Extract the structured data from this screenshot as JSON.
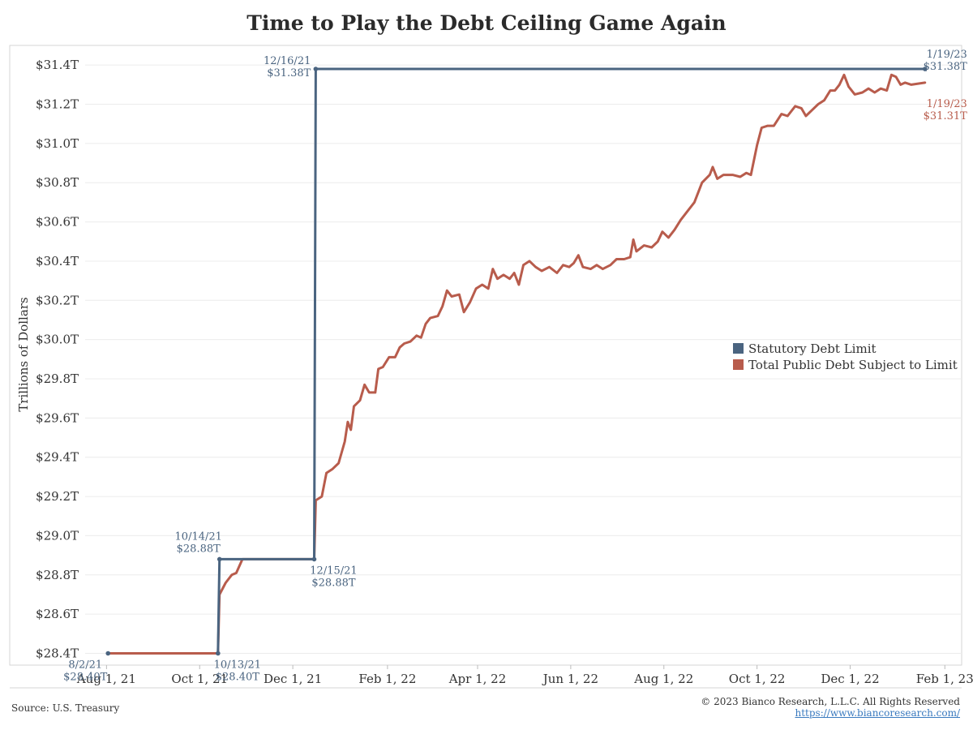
{
  "title": "Time to Play the Debt Ceiling Game Again",
  "source": "Source: U.S. Treasury",
  "copyright": "© 2023 Bianco Research, L.L.C. All Rights Reserved",
  "url": "https://www.biancoresearch.com/",
  "colors": {
    "limit": "#4a6480",
    "debt": "#b85c4c"
  },
  "chart_data": {
    "type": "line",
    "title": "Time to Play the Debt Ceiling Game Again",
    "ylabel": "Trillions of Dollars",
    "xlabel": "",
    "ylim": [
      28.34,
      31.5
    ],
    "xlim": [
      "2021-07-18",
      "2023-02-12"
    ],
    "yticks": [
      {
        "v": 28.4,
        "label": "$28.4T"
      },
      {
        "v": 28.6,
        "label": "$28.6T"
      },
      {
        "v": 28.8,
        "label": "$28.8T"
      },
      {
        "v": 29.0,
        "label": "$29.0T"
      },
      {
        "v": 29.2,
        "label": "$29.2T"
      },
      {
        "v": 29.4,
        "label": "$29.4T"
      },
      {
        "v": 29.6,
        "label": "$29.6T"
      },
      {
        "v": 29.8,
        "label": "$29.8T"
      },
      {
        "v": 30.0,
        "label": "$30.0T"
      },
      {
        "v": 30.2,
        "label": "$30.2T"
      },
      {
        "v": 30.4,
        "label": "$30.4T"
      },
      {
        "v": 30.6,
        "label": "$30.6T"
      },
      {
        "v": 30.8,
        "label": "$30.8T"
      },
      {
        "v": 31.0,
        "label": "$31.0T"
      },
      {
        "v": 31.2,
        "label": "$31.2T"
      },
      {
        "v": 31.4,
        "label": "$31.4T"
      }
    ],
    "xticks": [
      {
        "d": "2021-08-01",
        "label": "Aug 1, 21"
      },
      {
        "d": "2021-10-01",
        "label": "Oct 1, 21"
      },
      {
        "d": "2021-12-01",
        "label": "Dec 1, 21"
      },
      {
        "d": "2022-02-01",
        "label": "Feb 1, 22"
      },
      {
        "d": "2022-04-01",
        "label": "Apr 1, 22"
      },
      {
        "d": "2022-06-01",
        "label": "Jun 1, 22"
      },
      {
        "d": "2022-08-01",
        "label": "Aug 1, 22"
      },
      {
        "d": "2022-10-01",
        "label": "Oct 1, 22"
      },
      {
        "d": "2022-12-01",
        "label": "Dec 1, 22"
      },
      {
        "d": "2023-02-01",
        "label": "Feb 1, 23"
      }
    ],
    "grid": true,
    "legend_position": "right",
    "series": [
      {
        "name": "Statutory Debt Limit",
        "color": "#4a6480",
        "points": [
          [
            "2021-10-13",
            28.4
          ],
          [
            "2021-10-14",
            28.88
          ],
          [
            "2021-12-15",
            28.88
          ],
          [
            "2021-12-16",
            31.38
          ],
          [
            "2023-01-19",
            31.38
          ]
        ]
      },
      {
        "name": "Total Public Debt Subject to Limit",
        "color": "#b85c4c",
        "points": [
          [
            "2021-08-02",
            28.4
          ],
          [
            "2021-10-13",
            28.4
          ],
          [
            "2021-10-14",
            28.7
          ],
          [
            "2021-10-18",
            28.76
          ],
          [
            "2021-10-22",
            28.8
          ],
          [
            "2021-10-25",
            28.81
          ],
          [
            "2021-10-29",
            28.88
          ],
          [
            "2021-12-15",
            28.88
          ],
          [
            "2021-12-16",
            29.18
          ],
          [
            "2021-12-20",
            29.2
          ],
          [
            "2021-12-23",
            29.32
          ],
          [
            "2021-12-27",
            29.34
          ],
          [
            "2021-12-31",
            29.37
          ],
          [
            "2022-01-04",
            29.48
          ],
          [
            "2022-01-06",
            29.58
          ],
          [
            "2022-01-08",
            29.54
          ],
          [
            "2022-01-10",
            29.66
          ],
          [
            "2022-01-14",
            29.69
          ],
          [
            "2022-01-17",
            29.77
          ],
          [
            "2022-01-20",
            29.73
          ],
          [
            "2022-01-24",
            29.73
          ],
          [
            "2022-01-26",
            29.85
          ],
          [
            "2022-01-29",
            29.86
          ],
          [
            "2022-02-02",
            29.91
          ],
          [
            "2022-02-06",
            29.91
          ],
          [
            "2022-02-09",
            29.96
          ],
          [
            "2022-02-12",
            29.98
          ],
          [
            "2022-02-16",
            29.99
          ],
          [
            "2022-02-20",
            30.02
          ],
          [
            "2022-02-23",
            30.01
          ],
          [
            "2022-02-26",
            30.08
          ],
          [
            "2022-03-01",
            30.11
          ],
          [
            "2022-03-06",
            30.12
          ],
          [
            "2022-03-09",
            30.17
          ],
          [
            "2022-03-12",
            30.25
          ],
          [
            "2022-03-15",
            30.22
          ],
          [
            "2022-03-20",
            30.23
          ],
          [
            "2022-03-23",
            30.14
          ],
          [
            "2022-03-27",
            30.19
          ],
          [
            "2022-03-31",
            30.26
          ],
          [
            "2022-04-04",
            30.28
          ],
          [
            "2022-04-08",
            30.26
          ],
          [
            "2022-04-11",
            30.36
          ],
          [
            "2022-04-14",
            30.31
          ],
          [
            "2022-04-18",
            30.33
          ],
          [
            "2022-04-22",
            30.31
          ],
          [
            "2022-04-25",
            30.34
          ],
          [
            "2022-04-28",
            30.28
          ],
          [
            "2022-05-01",
            30.38
          ],
          [
            "2022-05-05",
            30.4
          ],
          [
            "2022-05-09",
            30.37
          ],
          [
            "2022-05-13",
            30.35
          ],
          [
            "2022-05-18",
            30.37
          ],
          [
            "2022-05-23",
            30.34
          ],
          [
            "2022-05-27",
            30.38
          ],
          [
            "2022-05-31",
            30.37
          ],
          [
            "2022-06-03",
            30.39
          ],
          [
            "2022-06-06",
            30.43
          ],
          [
            "2022-06-09",
            30.37
          ],
          [
            "2022-06-14",
            30.36
          ],
          [
            "2022-06-18",
            30.38
          ],
          [
            "2022-06-22",
            30.36
          ],
          [
            "2022-06-27",
            30.38
          ],
          [
            "2022-07-01",
            30.41
          ],
          [
            "2022-07-06",
            30.41
          ],
          [
            "2022-07-10",
            30.42
          ],
          [
            "2022-07-12",
            30.51
          ],
          [
            "2022-07-14",
            30.45
          ],
          [
            "2022-07-19",
            30.48
          ],
          [
            "2022-07-24",
            30.47
          ],
          [
            "2022-07-28",
            30.5
          ],
          [
            "2022-07-31",
            30.55
          ],
          [
            "2022-08-04",
            30.52
          ],
          [
            "2022-08-08",
            30.56
          ],
          [
            "2022-08-12",
            30.61
          ],
          [
            "2022-08-17",
            30.66
          ],
          [
            "2022-08-21",
            30.7
          ],
          [
            "2022-08-26",
            30.8
          ],
          [
            "2022-08-31",
            30.84
          ],
          [
            "2022-09-02",
            30.88
          ],
          [
            "2022-09-05",
            30.82
          ],
          [
            "2022-09-09",
            30.84
          ],
          [
            "2022-09-15",
            30.84
          ],
          [
            "2022-09-20",
            30.83
          ],
          [
            "2022-09-24",
            30.85
          ],
          [
            "2022-09-27",
            30.84
          ],
          [
            "2022-10-01",
            30.99
          ],
          [
            "2022-10-04",
            31.08
          ],
          [
            "2022-10-08",
            31.09
          ],
          [
            "2022-10-12",
            31.09
          ],
          [
            "2022-10-17",
            31.15
          ],
          [
            "2022-10-21",
            31.14
          ],
          [
            "2022-10-26",
            31.19
          ],
          [
            "2022-10-30",
            31.18
          ],
          [
            "2022-11-02",
            31.14
          ],
          [
            "2022-11-06",
            31.17
          ],
          [
            "2022-11-10",
            31.2
          ],
          [
            "2022-11-14",
            31.22
          ],
          [
            "2022-11-18",
            31.27
          ],
          [
            "2022-11-21",
            31.27
          ],
          [
            "2022-11-24",
            31.3
          ],
          [
            "2022-11-27",
            31.35
          ],
          [
            "2022-11-30",
            31.29
          ],
          [
            "2022-12-04",
            31.25
          ],
          [
            "2022-12-09",
            31.26
          ],
          [
            "2022-12-13",
            31.28
          ],
          [
            "2022-12-17",
            31.26
          ],
          [
            "2022-12-21",
            31.28
          ],
          [
            "2022-12-25",
            31.27
          ],
          [
            "2022-12-28",
            31.35
          ],
          [
            "2022-12-31",
            31.34
          ],
          [
            "2023-01-03",
            31.3
          ],
          [
            "2023-01-06",
            31.31
          ],
          [
            "2023-01-10",
            31.3
          ],
          [
            "2023-01-19",
            31.31
          ]
        ]
      }
    ],
    "annotations": [
      {
        "series": "limit",
        "d": "2021-08-02",
        "v": 28.4,
        "date": "8/2/21",
        "value": "$28.40T",
        "pos": "below-left"
      },
      {
        "series": "limit",
        "d": "2021-10-13",
        "v": 28.4,
        "date": "10/13/21",
        "value": "$28.40T",
        "pos": "below"
      },
      {
        "series": "limit",
        "d": "2021-10-14",
        "v": 28.88,
        "date": "10/14/21",
        "value": "$28.88T",
        "pos": "above-left"
      },
      {
        "series": "limit",
        "d": "2021-12-15",
        "v": 28.88,
        "date": "12/15/21",
        "value": "$28.88T",
        "pos": "below"
      },
      {
        "series": "limit",
        "d": "2021-12-16",
        "v": 31.38,
        "date": "12/16/21",
        "value": "$31.38T",
        "pos": "left"
      },
      {
        "series": "limit",
        "d": "2023-01-19",
        "v": 31.38,
        "date": "1/19/23",
        "value": "$31.38T",
        "pos": "above-right"
      },
      {
        "series": "debt",
        "d": "2023-01-19",
        "v": 31.31,
        "date": "1/19/23",
        "value": "$31.31T",
        "pos": "below-right"
      }
    ]
  }
}
